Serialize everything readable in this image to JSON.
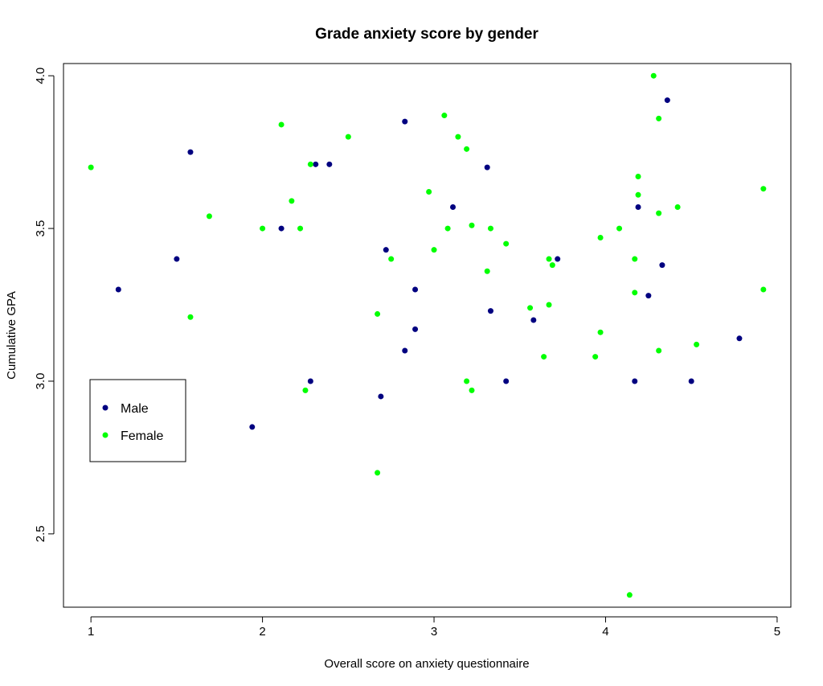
{
  "chart_data": {
    "type": "scatter",
    "title": "Grade anxiety score by gender",
    "xlabel": "Overall score on anxiety questionnaire",
    "ylabel": "Cumulative GPA",
    "xlim": [
      0.84,
      5.08
    ],
    "ylim": [
      2.26,
      4.04
    ],
    "x_ticks": [
      "1",
      "2",
      "3",
      "4",
      "5"
    ],
    "y_ticks": [
      "2.5",
      "3.0",
      "3.5",
      "4.0"
    ],
    "grid": false,
    "legend_position": "middle-left",
    "series": [
      {
        "name": "Male",
        "color": "#000080",
        "points": [
          [
            1.16,
            3.3
          ],
          [
            1.5,
            3.4
          ],
          [
            1.58,
            3.75
          ],
          [
            1.94,
            2.85
          ],
          [
            2.11,
            3.5
          ],
          [
            2.28,
            3.0
          ],
          [
            2.31,
            3.71
          ],
          [
            2.39,
            3.71
          ],
          [
            2.69,
            2.95
          ],
          [
            2.72,
            3.43
          ],
          [
            2.83,
            3.85
          ],
          [
            2.83,
            3.1
          ],
          [
            2.89,
            3.3
          ],
          [
            2.89,
            3.17
          ],
          [
            3.11,
            3.57
          ],
          [
            3.31,
            3.7
          ],
          [
            3.33,
            3.23
          ],
          [
            3.42,
            3.0
          ],
          [
            3.58,
            3.2
          ],
          [
            3.72,
            3.4
          ],
          [
            4.17,
            3.0
          ],
          [
            4.19,
            3.57
          ],
          [
            4.25,
            3.28
          ],
          [
            4.33,
            3.38
          ],
          [
            4.36,
            3.92
          ],
          [
            4.5,
            3.0
          ],
          [
            4.78,
            3.14
          ]
        ]
      },
      {
        "name": "Female",
        "color": "#00ff00",
        "points": [
          [
            1.0,
            3.7
          ],
          [
            1.58,
            3.21
          ],
          [
            1.69,
            3.54
          ],
          [
            2.0,
            3.5
          ],
          [
            2.11,
            3.84
          ],
          [
            2.17,
            3.59
          ],
          [
            2.22,
            3.5
          ],
          [
            2.25,
            2.97
          ],
          [
            2.28,
            3.71
          ],
          [
            2.5,
            3.8
          ],
          [
            2.67,
            3.22
          ],
          [
            2.67,
            2.7
          ],
          [
            2.75,
            3.4
          ],
          [
            2.97,
            3.62
          ],
          [
            3.0,
            3.43
          ],
          [
            3.06,
            3.87
          ],
          [
            3.08,
            3.5
          ],
          [
            3.14,
            3.8
          ],
          [
            3.19,
            3.76
          ],
          [
            3.19,
            3.0
          ],
          [
            3.22,
            3.51
          ],
          [
            3.22,
            2.97
          ],
          [
            3.31,
            3.36
          ],
          [
            3.33,
            3.5
          ],
          [
            3.42,
            3.45
          ],
          [
            3.56,
            3.24
          ],
          [
            3.64,
            3.08
          ],
          [
            3.67,
            3.4
          ],
          [
            3.67,
            3.25
          ],
          [
            3.69,
            3.38
          ],
          [
            3.94,
            3.08
          ],
          [
            3.97,
            3.47
          ],
          [
            3.97,
            3.16
          ],
          [
            4.08,
            3.5
          ],
          [
            4.14,
            2.3
          ],
          [
            4.17,
            3.4
          ],
          [
            4.17,
            3.29
          ],
          [
            4.19,
            3.67
          ],
          [
            4.19,
            3.61
          ],
          [
            4.28,
            4.0
          ],
          [
            4.31,
            3.86
          ],
          [
            4.31,
            3.55
          ],
          [
            4.31,
            3.1
          ],
          [
            4.42,
            3.57
          ],
          [
            4.53,
            3.12
          ],
          [
            4.92,
            3.63
          ],
          [
            4.92,
            3.3
          ]
        ]
      }
    ]
  }
}
